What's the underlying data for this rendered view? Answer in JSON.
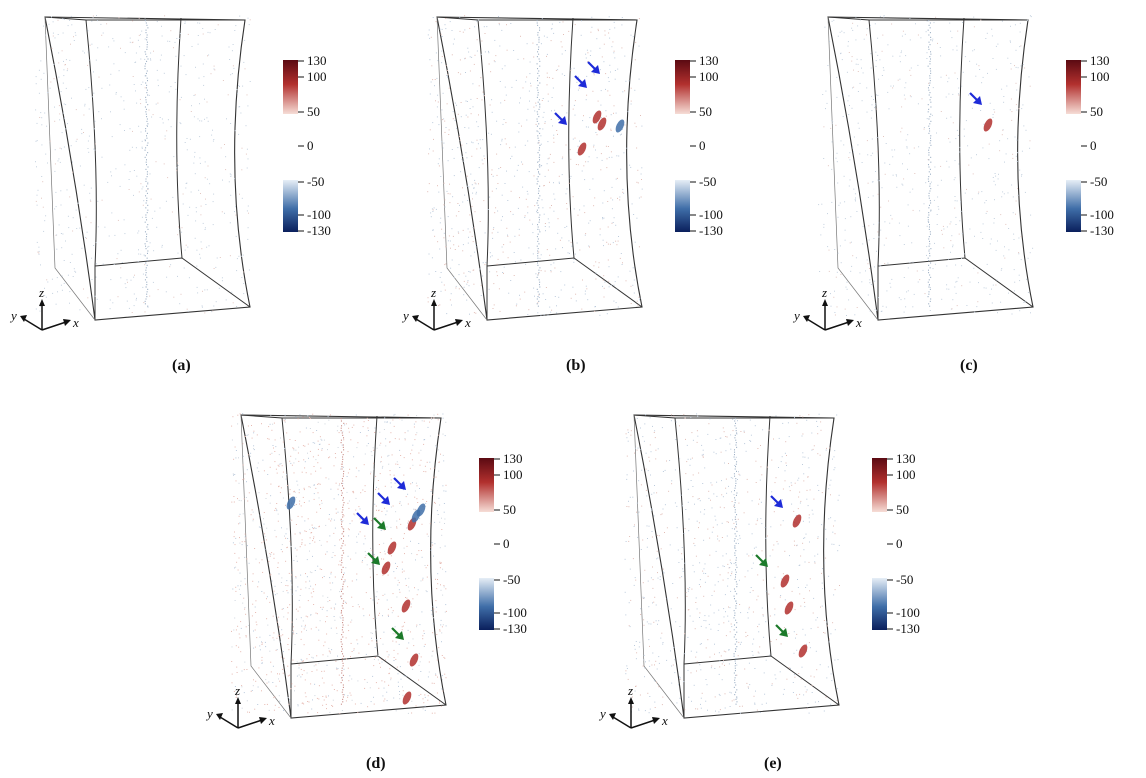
{
  "colorbar": {
    "ticks": [
      "130",
      "100",
      "50",
      "0",
      "-50",
      "-100",
      "-130"
    ],
    "colors": {
      "positive_high": "#5b0a12",
      "positive_mid": "#b2302e",
      "positive_low": "#f6ddd6",
      "negative_low": "#e6eef6",
      "negative_mid": "#3f6ea8",
      "negative_high": "#0a1f5c"
    }
  },
  "axes": {
    "x": "x",
    "y": "y",
    "z": "z"
  },
  "arrow_colors": {
    "blue": "#1e2bd8",
    "green": "#1c7a2a"
  },
  "panels": [
    {
      "id": "a",
      "caption": "(a)",
      "density": "low",
      "arrows": []
    },
    {
      "id": "b",
      "caption": "(b)",
      "density": "medium",
      "arrows": [
        "blue",
        "blue",
        "blue"
      ]
    },
    {
      "id": "c",
      "caption": "(c)",
      "density": "low",
      "arrows": [
        "blue"
      ]
    },
    {
      "id": "d",
      "caption": "(d)",
      "density": "high",
      "arrows": [
        "blue",
        "blue",
        "blue",
        "green",
        "green",
        "green"
      ]
    },
    {
      "id": "e",
      "caption": "(e)",
      "density": "medium",
      "arrows": [
        "blue",
        "green",
        "green"
      ]
    }
  ]
}
